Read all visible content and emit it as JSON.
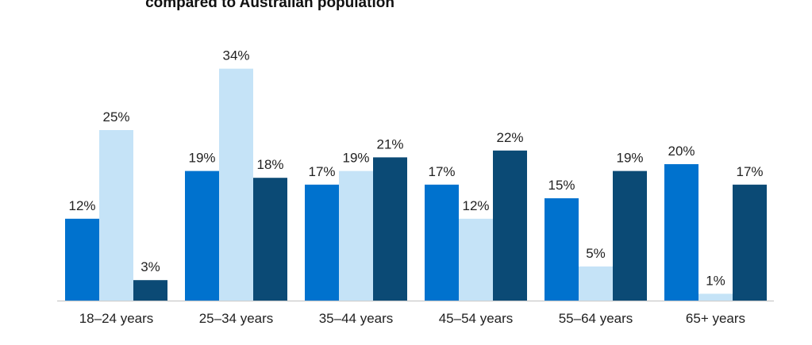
{
  "chart_data": {
    "type": "bar",
    "title": "compared to Australian population",
    "xlabel": "",
    "ylabel": "",
    "ylim": [
      0,
      34
    ],
    "grid": false,
    "legend": "none",
    "value_suffix": "%",
    "categories": [
      "18–24 years",
      "25–34 years",
      "35–44 years",
      "45–54 years",
      "55–64 years",
      "65+ years"
    ],
    "series": [
      {
        "color": "#0072CE",
        "values": [
          12,
          19,
          17,
          17,
          15,
          20
        ]
      },
      {
        "color": "#C5E3F7",
        "values": [
          25,
          34,
          19,
          12,
          5,
          1
        ]
      },
      {
        "color": "#0B4A75",
        "values": [
          3,
          18,
          21,
          22,
          19,
          17
        ]
      }
    ]
  }
}
